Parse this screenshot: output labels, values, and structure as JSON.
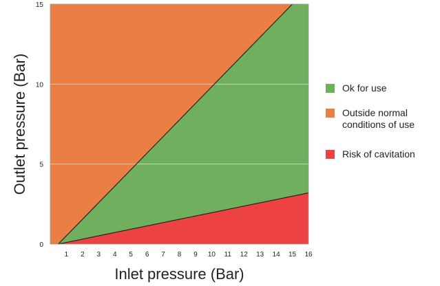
{
  "chart_data": {
    "type": "area",
    "title": "",
    "xlabel": "Inlet pressure (Bar)",
    "ylabel": "Outlet pressure (Bar)",
    "xlim": [
      0,
      16
    ],
    "ylim": [
      0,
      15
    ],
    "x_ticks": [
      1,
      2,
      3,
      4,
      5,
      6,
      7,
      8,
      9,
      10,
      11,
      12,
      13,
      14,
      15,
      16
    ],
    "y_ticks": [
      0,
      5,
      10,
      15
    ],
    "grid": "horizontal",
    "legend_position": "right",
    "boundaries": [
      {
        "points": [
          [
            0.5,
            0
          ],
          [
            15,
            15
          ]
        ]
      },
      {
        "points": [
          [
            0.5,
            0
          ],
          [
            16,
            3.2
          ]
        ]
      }
    ],
    "regions": [
      {
        "name": "Outside normal\nconditions of use",
        "color": "#e97f43",
        "polygon": [
          [
            0,
            0
          ],
          [
            0.5,
            0
          ],
          [
            15,
            15
          ],
          [
            0,
            15
          ]
        ]
      },
      {
        "name": "Ok for use",
        "color": "#6faf5e",
        "polygon": [
          [
            0.5,
            0
          ],
          [
            16,
            3.2
          ],
          [
            16,
            15
          ],
          [
            15,
            15
          ]
        ]
      },
      {
        "name": "Risk of cavitation",
        "color": "#ed4242",
        "polygon": [
          [
            0.5,
            0
          ],
          [
            16,
            0
          ],
          [
            16,
            3.2
          ]
        ]
      }
    ]
  },
  "legend": {
    "items": [
      {
        "label": "Ok for use",
        "color": "#6faf5e"
      },
      {
        "label": "Outside normal\nconditions of use",
        "color": "#e97f43"
      },
      {
        "label": "Risk of cavitation",
        "color": "#ed4242"
      }
    ]
  }
}
